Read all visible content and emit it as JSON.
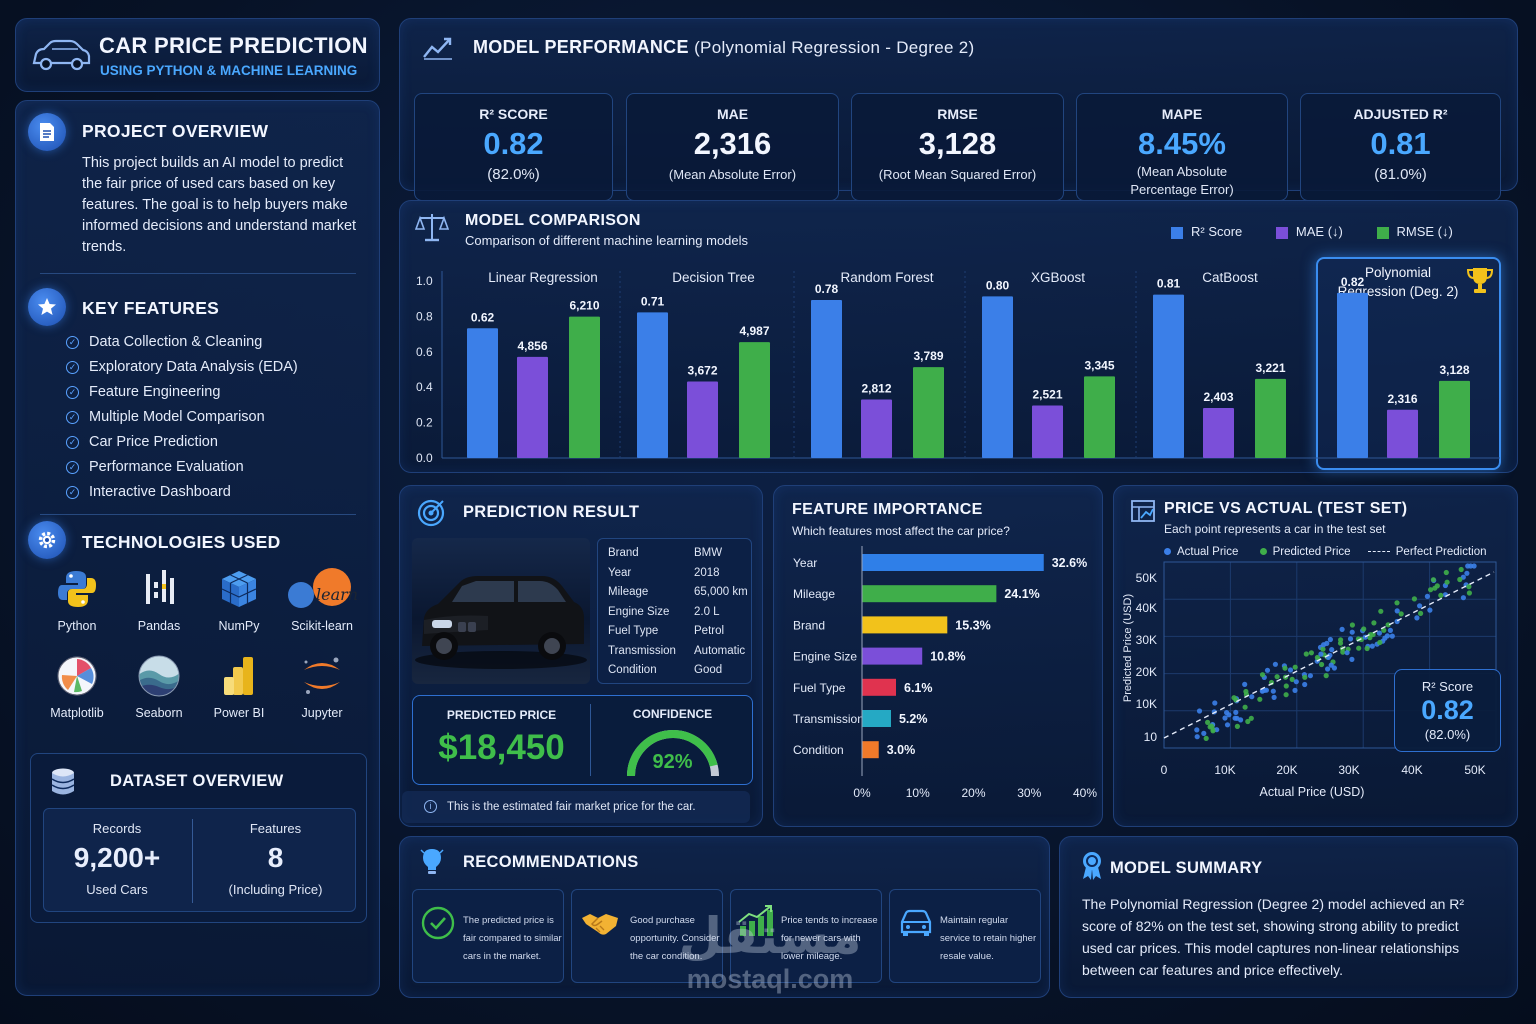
{
  "header": {
    "title": "CAR PRICE PREDICTION",
    "subtitle": "USING PYTHON & MACHINE LEARNING"
  },
  "overview": {
    "title": "PROJECT OVERVIEW",
    "text": "This project builds an AI model to predict the fair price of used cars based on key features. The goal is to help buyers make informed decisions and understand market trends."
  },
  "key_features": {
    "title": "KEY FEATURES",
    "items": [
      "Data Collection & Cleaning",
      "Exploratory Data Analysis (EDA)",
      "Feature Engineering",
      "Multiple Model Comparison",
      "Car Price Prediction",
      "Performance Evaluation",
      "Interactive Dashboard"
    ]
  },
  "technologies": {
    "title": "TECHNOLOGIES USED",
    "items": [
      "Python",
      "Pandas",
      "NumPy",
      "Scikit-learn",
      "Matplotlib",
      "Seaborn",
      "Power BI",
      "Jupyter"
    ],
    "logo_text": "learn"
  },
  "dataset": {
    "title": "DATASET OVERVIEW",
    "records_label": "Records",
    "records_value": "9,200+",
    "records_sub": "Used Cars",
    "features_label": "Features",
    "features_value": "8",
    "features_sub": "(Including Price)"
  },
  "performance": {
    "title": "MODEL PERFORMANCE",
    "title_suffix": "(Polynomial Regression - Degree 2)",
    "metrics": [
      {
        "label": "R² SCORE",
        "value": "0.82",
        "sub": "(82.0%)",
        "color": "#4aa8ff"
      },
      {
        "label": "MAE",
        "value": "2,316",
        "sub": "(Mean Absolute Error)",
        "color": "#f2f6ff"
      },
      {
        "label": "RMSE",
        "value": "3,128",
        "sub": "(Root Mean Squared Error)",
        "color": "#f2f6ff"
      },
      {
        "label": "MAPE",
        "value": "8.45%",
        "sub1": "(Mean Absolute",
        "sub2": "Percentage Error)",
        "color": "#4aa8ff"
      },
      {
        "label": "ADJUSTED R²",
        "value": "0.81",
        "sub": "(81.0%)",
        "color": "#4aa8ff"
      }
    ]
  },
  "comparison": {
    "title": "MODEL COMPARISON",
    "subtitle": "Comparison of different machine learning models",
    "legend": [
      "R² Score",
      "MAE (↓)",
      "RMSE (↓)"
    ],
    "colors": {
      "r2": "#3b7fe8",
      "mae": "#7b4fd9",
      "rmse": "#3fae4a"
    },
    "y_ticks": [
      "1.0",
      "0.8",
      "0.6",
      "0.4",
      "0.2",
      "0.0"
    ]
  },
  "chart_data": {
    "type": "bar",
    "title": "MODEL COMPARISON",
    "categories": [
      "Linear Regression",
      "Decision Tree",
      "Random Forest",
      "XGBoost",
      "CatBoost",
      "Polynomial Regression (Deg. 2)"
    ],
    "series": [
      {
        "name": "R² Score",
        "values": [
          0.62,
          0.71,
          0.78,
          0.8,
          0.81,
          0.82
        ]
      },
      {
        "name": "MAE (↓)",
        "values": [
          4856,
          3672,
          2812,
          2521,
          2403,
          2316
        ]
      },
      {
        "name": "RMSE (↓)",
        "values": [
          6210,
          4987,
          3789,
          3345,
          3221,
          3128
        ]
      }
    ],
    "ylim": [
      0,
      1.0
    ],
    "legend": "top-right"
  },
  "prediction": {
    "title": "PREDICTION RESULT",
    "specs": [
      {
        "k": "Brand",
        "v": "BMW"
      },
      {
        "k": "Year",
        "v": "2018"
      },
      {
        "k": "Mileage",
        "v": "65,000 km"
      },
      {
        "k": "Engine Size",
        "v": "2.0 L"
      },
      {
        "k": "Fuel Type",
        "v": "Petrol"
      },
      {
        "k": "Transmission",
        "v": "Automatic"
      },
      {
        "k": "Condition",
        "v": "Good"
      }
    ],
    "price_label": "PREDICTED PRICE",
    "price": "$18,450",
    "confidence_label": "CONFIDENCE",
    "confidence": "92%",
    "confidence_fraction": 0.92,
    "note": "This is the estimated fair market price for the car."
  },
  "importance": {
    "title": "FEATURE IMPORTANCE",
    "subtitle": "Which features most affect the car price?",
    "items": [
      {
        "name": "Year",
        "value": 32.6,
        "label": "32.6%",
        "color": "#2f7fe8"
      },
      {
        "name": "Mileage",
        "value": 24.1,
        "label": "24.1%",
        "color": "#3fae4a"
      },
      {
        "name": "Brand",
        "value": 15.3,
        "label": "15.3%",
        "color": "#f2c21b"
      },
      {
        "name": "Engine Size",
        "value": 10.8,
        "label": "10.8%",
        "color": "#7b4fd9"
      },
      {
        "name": "Fuel Type",
        "value": 6.1,
        "label": "6.1%",
        "color": "#e0334f"
      },
      {
        "name": "Transmission",
        "value": 5.2,
        "label": "5.2%",
        "color": "#25a9c4"
      },
      {
        "name": "Condition",
        "value": 3.0,
        "label": "3.0%",
        "color": "#f07a2a"
      }
    ],
    "x_ticks": [
      "0%",
      "10%",
      "20%",
      "30%",
      "40%"
    ],
    "x_max": 40
  },
  "scatter": {
    "title": "PRICE VS ACTUAL (TEST SET)",
    "subtitle": "Each point represents a car in the test set",
    "legend": [
      "Actual Price",
      "Predicted Price",
      "Perfect Prediction"
    ],
    "y_ticks": [
      "50K",
      "40K",
      "30K",
      "20K",
      "10K",
      "10"
    ],
    "x_ticks": [
      "0",
      "10K",
      "20K",
      "30K",
      "40K",
      "50K"
    ],
    "ylabel": "Predicted Price (USD)",
    "xlabel": "Actual Price (USD)",
    "r2_label": "R² Score",
    "r2_value": "0.82",
    "r2_sub": "(82.0%)"
  },
  "recommendations": {
    "title": "RECOMMENDATIONS",
    "items": [
      "The predicted price is fair compared to similar cars in the market.",
      "Good purchase opportunity. Consider the car condition.",
      "Price tends to increase for newer cars with lower mileage.",
      "Maintain regular service to retain higher resale value."
    ]
  },
  "summary": {
    "title": "MODEL SUMMARY",
    "text": "The Polynomial Regression (Degree 2) model achieved an R² score of 82% on the test set, showing strong ability to predict used car prices. This model captures non-linear relationships between car features and price effectively."
  },
  "watermark": {
    "arabic": "مستقل",
    "latin": "mostaql.com"
  }
}
